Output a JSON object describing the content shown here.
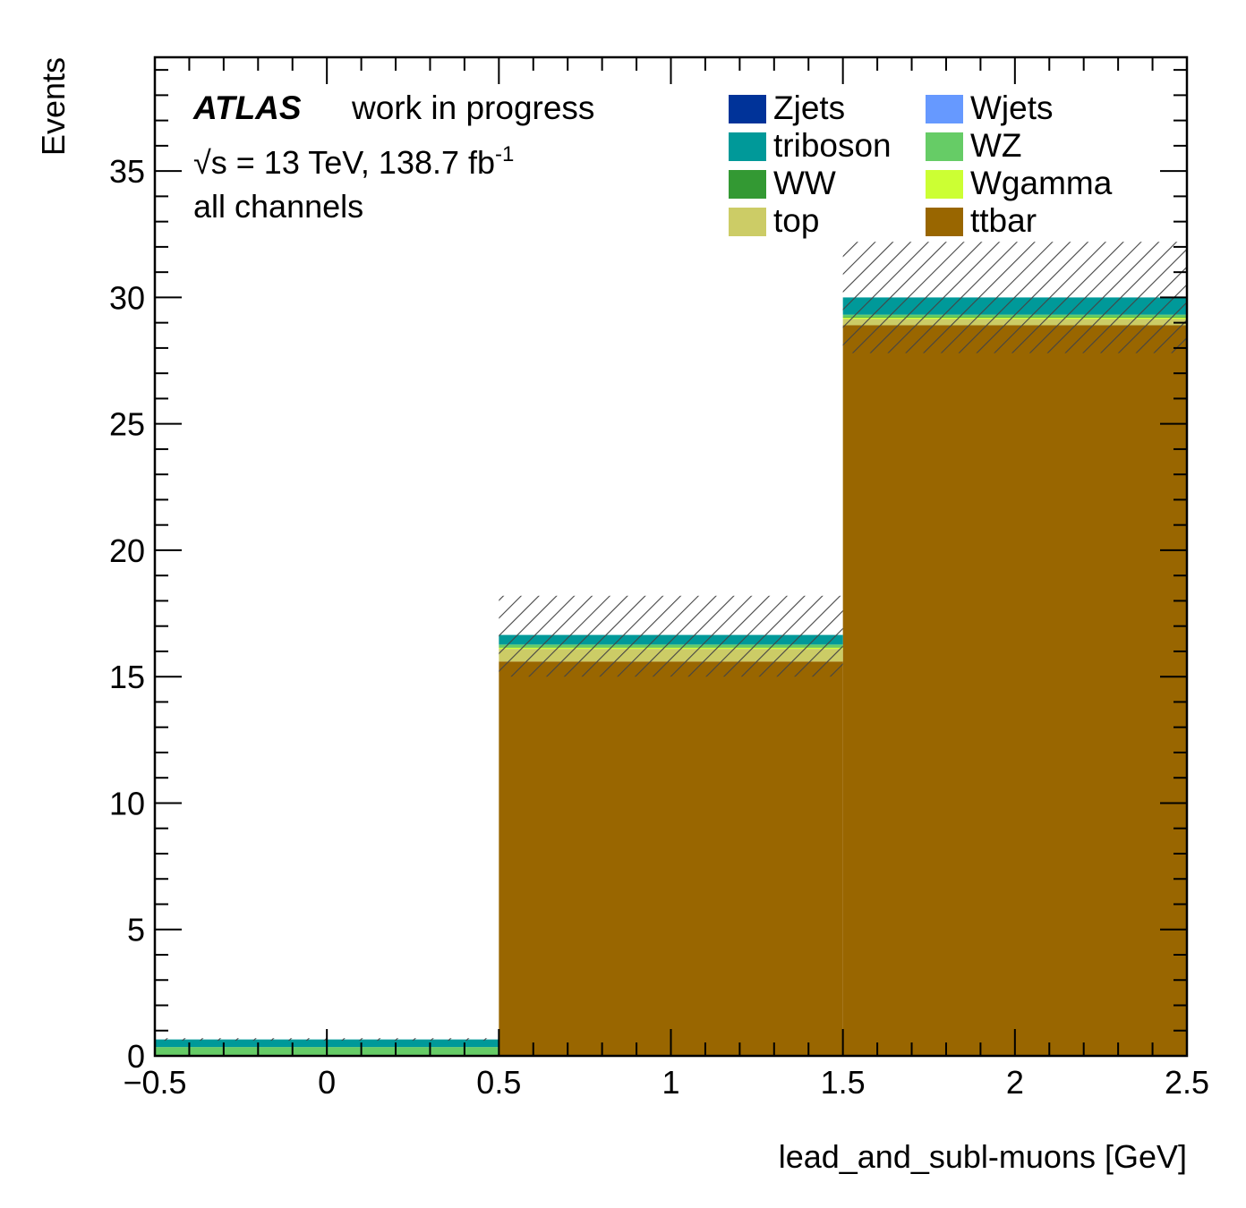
{
  "chart_data": {
    "type": "bar",
    "stacked": true,
    "xlabel": "lead_and_subl-muons [GeV]",
    "ylabel": "Events",
    "xlim": [
      -0.5,
      2.5
    ],
    "ylim": [
      0,
      39.5
    ],
    "xticks": [
      -0.5,
      0,
      0.5,
      1,
      1.5,
      2,
      2.5
    ],
    "xtick_labels": [
      "−0.5",
      "0",
      "0.5",
      "1",
      "1.5",
      "2",
      "2.5"
    ],
    "yticks": [
      0,
      5,
      10,
      15,
      20,
      25,
      30,
      35
    ],
    "ytick_labels": [
      "0",
      "5",
      "10",
      "15",
      "20",
      "25",
      "30",
      "35"
    ],
    "bin_edges": [
      -0.5,
      0.5,
      1.5,
      2.5
    ],
    "series": [
      {
        "name": "ttbar",
        "color": "#996600",
        "values": [
          0.0,
          15.6,
          28.9
        ]
      },
      {
        "name": "top",
        "color": "#cccc66",
        "values": [
          0.0,
          0.5,
          0.25
        ]
      },
      {
        "name": "Wgamma",
        "color": "#ccff33",
        "values": [
          0.0,
          0.05,
          0.05
        ]
      },
      {
        "name": "WW",
        "color": "#339933",
        "values": [
          0.0,
          0.02,
          0.02
        ]
      },
      {
        "name": "WZ",
        "color": "#66cc66",
        "values": [
          0.35,
          0.1,
          0.1
        ]
      },
      {
        "name": "triboson",
        "color": "#009999",
        "values": [
          0.3,
          0.38,
          0.68
        ]
      },
      {
        "name": "Wjets",
        "color": "#6699ff",
        "values": [
          0.0,
          0.0,
          0.0
        ]
      },
      {
        "name": "Zjets",
        "color": "#003399",
        "values": [
          0.0,
          0.0,
          0.0
        ]
      }
    ],
    "uncertainty": {
      "style": "hatched",
      "low": [
        0.6,
        15.0,
        27.8
      ],
      "high": [
        0.7,
        18.2,
        32.2
      ]
    },
    "legend": {
      "placement": "top-right",
      "columns": 2,
      "entries": [
        {
          "label": "Zjets",
          "color": "#003399"
        },
        {
          "label": "Wjets",
          "color": "#6699ff"
        },
        {
          "label": "triboson",
          "color": "#009999"
        },
        {
          "label": "WZ",
          "color": "#66cc66"
        },
        {
          "label": "WW",
          "color": "#339933"
        },
        {
          "label": "Wgamma",
          "color": "#ccff33"
        },
        {
          "label": "top",
          "color": "#cccc66"
        },
        {
          "label": "ttbar",
          "color": "#996600"
        }
      ]
    },
    "annotations": {
      "experiment": "ATLAS",
      "status": "work in progress",
      "sqrt_symbol": "√",
      "energy_text": "s = 13 TeV, 138.7 fb",
      "lumi_exponent": "-1",
      "channel": "all channels"
    }
  }
}
